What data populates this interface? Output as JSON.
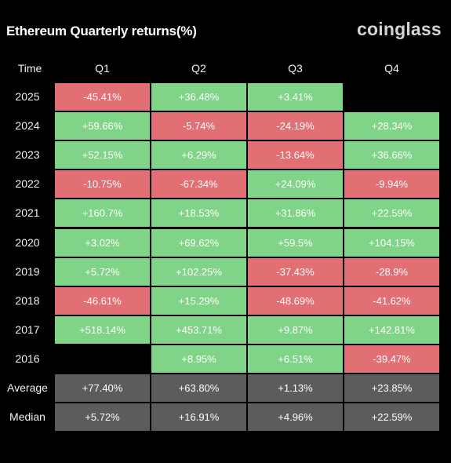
{
  "title": "Ethereum Quarterly returns(%)",
  "brand": "coinglass",
  "colors": {
    "positive": "#7fd487",
    "negative": "#e26f74",
    "summary": "#5c5c5f",
    "background": "#000000"
  },
  "chart_data": {
    "type": "table",
    "header_corner": "Time",
    "columns": [
      "Q1",
      "Q2",
      "Q3",
      "Q4"
    ],
    "rows": [
      {
        "label": "2025",
        "values": [
          "-45.41%",
          "+36.48%",
          "+3.41%",
          ""
        ]
      },
      {
        "label": "2024",
        "values": [
          "+59.66%",
          "-5.74%",
          "-24.19%",
          "+28.34%"
        ]
      },
      {
        "label": "2023",
        "values": [
          "+52.15%",
          "+6.29%",
          "-13.64%",
          "+36.66%"
        ]
      },
      {
        "label": "2022",
        "values": [
          "-10.75%",
          "-67.34%",
          "+24.09%",
          "-9.94%"
        ]
      },
      {
        "label": "2021",
        "values": [
          "+160.7%",
          "+18.53%",
          "+31.86%",
          "+22.59%"
        ]
      },
      {
        "label": "2020",
        "values": [
          "+3.02%",
          "+69.62%",
          "+59.5%",
          "+104.15%"
        ]
      },
      {
        "label": "2019",
        "values": [
          "+5.72%",
          "+102.25%",
          "-37.43%",
          "-28.9%"
        ]
      },
      {
        "label": "2018",
        "values": [
          "-46.61%",
          "+15.29%",
          "-48.69%",
          "-41.62%"
        ]
      },
      {
        "label": "2017",
        "values": [
          "+518.14%",
          "+453.71%",
          "+9.87%",
          "+142.81%"
        ]
      },
      {
        "label": "2016",
        "values": [
          "",
          "+8.95%",
          "+6.51%",
          "-39.47%"
        ]
      }
    ],
    "summary_rows": [
      {
        "label": "Average",
        "values": [
          "+77.40%",
          "+63.80%",
          "+1.13%",
          "+23.85%"
        ]
      },
      {
        "label": "Median",
        "values": [
          "+5.72%",
          "+16.91%",
          "+4.96%",
          "+22.59%"
        ]
      }
    ]
  }
}
